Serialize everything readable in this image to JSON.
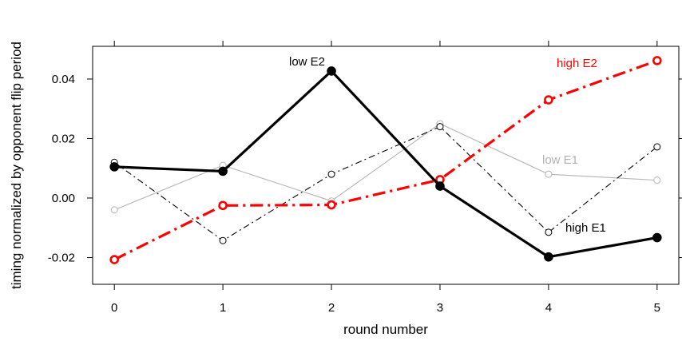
{
  "chart_data": {
    "type": "line",
    "title": "",
    "xlabel": "round number",
    "ylabel": "timing normalized by opponent flip period",
    "x": [
      0,
      1,
      2,
      3,
      4,
      5
    ],
    "x_ticks": [
      "0",
      "1",
      "2",
      "3",
      "4",
      "5"
    ],
    "y_ticks": [
      "-0.02",
      "0.00",
      "0.02",
      "0.04"
    ],
    "xlim": [
      -0.2,
      5.2
    ],
    "ylim": [
      -0.029,
      0.051
    ],
    "grid": false,
    "legend": "direct labels on lines",
    "series": [
      {
        "name": "low E1",
        "values": [
          -0.004,
          0.011,
          -0.001,
          0.025,
          0.008,
          0.006
        ],
        "color": "#b3b3b3",
        "line_style": "solid",
        "line_width": "thin",
        "marker": "open-circle",
        "marker_fill": "none"
      },
      {
        "name": "high E1",
        "values": [
          0.012,
          -0.0143,
          0.008,
          0.024,
          -0.0115,
          0.0172
        ],
        "color": "#000000",
        "line_style": "dash-dot",
        "line_width": "thin",
        "marker": "open-circle",
        "marker_fill": "none"
      },
      {
        "name": "high E2",
        "values": [
          -0.0207,
          -0.0025,
          -0.0023,
          0.0062,
          0.033,
          0.0462
        ],
        "color": "#ff0000",
        "line_style": "dash-dot",
        "line_width": "thick",
        "marker": "open-circle",
        "marker_fill": "none"
      },
      {
        "name": "low E2",
        "values": [
          0.0105,
          0.009,
          0.0427,
          0.004,
          -0.0198,
          -0.0133
        ],
        "color": "#000000",
        "line_style": "solid",
        "line_width": "thick",
        "marker": "filled-circle",
        "marker_fill": "#000000"
      }
    ],
    "annotations": [
      {
        "text": "low E2",
        "color": "#000000",
        "near": "round 2 peak, left"
      },
      {
        "text": "high E2",
        "color": "#ff0000",
        "near": "round 5, left"
      },
      {
        "text": "low E1",
        "color": "#b3b3b3",
        "near": "rounds 4-5, above"
      },
      {
        "text": "high E1",
        "color": "#000000",
        "near": "rounds 4-5, right"
      }
    ]
  }
}
